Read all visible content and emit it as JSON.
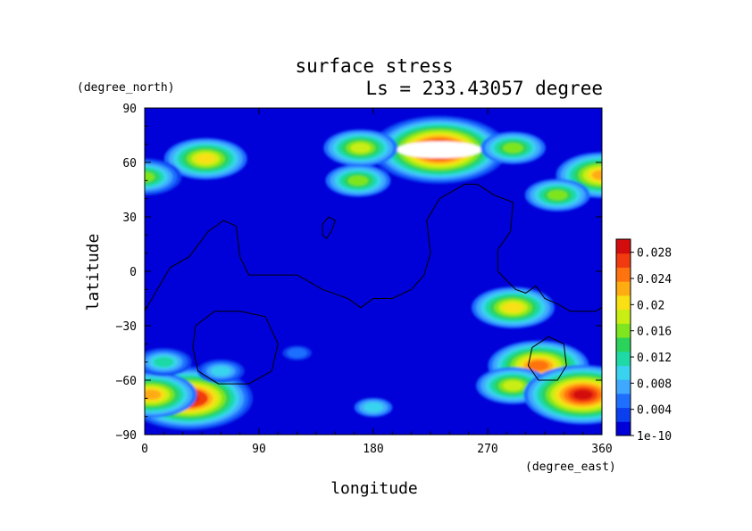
{
  "chart_data": {
    "type": "heatmap",
    "title": "surface stress",
    "subtitle": "Ls = 233.43057 degree",
    "xlabel": "longitude",
    "ylabel": "latitude",
    "x_unit": "(degree_east)",
    "y_unit": "(degree_north)",
    "xlim": [
      0,
      360
    ],
    "ylim": [
      -90,
      90
    ],
    "x_ticks": [
      "0",
      "90",
      "180",
      "270",
      "360"
    ],
    "y_ticks": [
      "90",
      "60",
      "30",
      "0",
      "−30",
      "−60",
      "−90"
    ],
    "colorbar": {
      "min": 0,
      "max": 0.03,
      "labels": [
        "0.028",
        "0.024",
        "0.02",
        "0.016",
        "0.012",
        "0.008",
        "0.004",
        "1e-10"
      ],
      "colors": [
        "#0000d8",
        "#0a3ff0",
        "#1f6fff",
        "#3fa8ff",
        "#39d3ef",
        "#1fd9a6",
        "#2bd35b",
        "#7ee51f",
        "#c9ee14",
        "#f8e014",
        "#ffab12",
        "#ff7210",
        "#f23a10",
        "#d30d0d"
      ]
    },
    "hotspots": [
      {
        "lon": 232,
        "lat": 67,
        "value": 0.032
      },
      {
        "lon": 170,
        "lat": 68,
        "value": 0.018
      },
      {
        "lon": 290,
        "lat": 68,
        "value": 0.016
      },
      {
        "lon": 48,
        "lat": 62,
        "value": 0.02
      },
      {
        "lon": 0,
        "lat": 52,
        "value": 0.017
      },
      {
        "lon": 360,
        "lat": 53,
        "value": 0.022
      },
      {
        "lon": 168,
        "lat": 50,
        "value": 0.016
      },
      {
        "lon": 325,
        "lat": 42,
        "value": 0.016
      },
      {
        "lon": 290,
        "lat": -20,
        "value": 0.02
      },
      {
        "lon": 310,
        "lat": -52,
        "value": 0.024
      },
      {
        "lon": 290,
        "lat": -63,
        "value": 0.018
      },
      {
        "lon": 345,
        "lat": -68,
        "value": 0.028
      },
      {
        "lon": 35,
        "lat": -70,
        "value": 0.03
      },
      {
        "lon": 5,
        "lat": -68,
        "value": 0.022
      },
      {
        "lon": 60,
        "lat": -55,
        "value": 0.01
      },
      {
        "lon": 15,
        "lat": -50,
        "value": 0.012
      },
      {
        "lon": 180,
        "lat": -75,
        "value": 0.009
      },
      {
        "lon": 120,
        "lat": -45,
        "value": 0.006
      }
    ],
    "contours": [
      [
        [
          0,
          -22
        ],
        [
          10,
          -10
        ],
        [
          20,
          2
        ],
        [
          35,
          8
        ],
        [
          50,
          22
        ],
        [
          62,
          28
        ],
        [
          72,
          25
        ],
        [
          75,
          8
        ],
        [
          82,
          -2
        ],
        [
          100,
          -2
        ],
        [
          120,
          -2
        ],
        [
          140,
          -10
        ],
        [
          160,
          -15
        ],
        [
          170,
          -20
        ],
        [
          180,
          -15
        ],
        [
          195,
          -15
        ],
        [
          210,
          -10
        ],
        [
          220,
          -2
        ],
        [
          225,
          10
        ],
        [
          222,
          28
        ],
        [
          232,
          40
        ],
        [
          252,
          48
        ],
        [
          262,
          48
        ],
        [
          275,
          42
        ],
        [
          290,
          38
        ],
        [
          288,
          22
        ],
        [
          278,
          12
        ],
        [
          278,
          0
        ],
        [
          292,
          -10
        ],
        [
          300,
          -12
        ],
        [
          308,
          -8
        ],
        [
          315,
          -15
        ],
        [
          325,
          -18
        ],
        [
          335,
          -22
        ],
        [
          345,
          -22
        ],
        [
          355,
          -22
        ],
        [
          360,
          -20
        ]
      ],
      [
        [
          140,
          20
        ],
        [
          143,
          18
        ],
        [
          147,
          22
        ],
        [
          150,
          28
        ],
        [
          145,
          30
        ],
        [
          140,
          26
        ],
        [
          140,
          20
        ]
      ],
      [
        [
          40,
          -30
        ],
        [
          55,
          -22
        ],
        [
          75,
          -22
        ],
        [
          95,
          -25
        ],
        [
          105,
          -40
        ],
        [
          100,
          -55
        ],
        [
          82,
          -62
        ],
        [
          58,
          -62
        ],
        [
          42,
          -55
        ],
        [
          38,
          -42
        ],
        [
          40,
          -30
        ]
      ],
      [
        [
          305,
          -42
        ],
        [
          318,
          -36
        ],
        [
          330,
          -40
        ],
        [
          332,
          -52
        ],
        [
          325,
          -60
        ],
        [
          310,
          -60
        ],
        [
          302,
          -52
        ],
        [
          305,
          -42
        ]
      ]
    ]
  }
}
